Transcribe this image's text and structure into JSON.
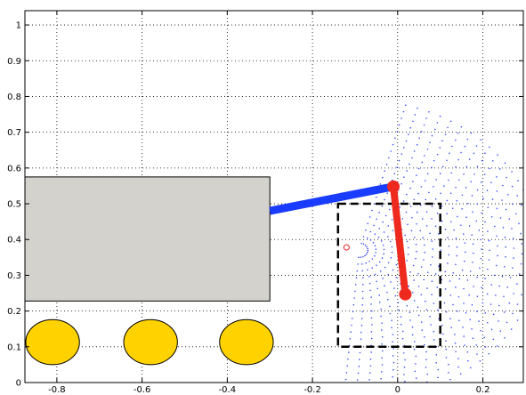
{
  "chart_data": {
    "type": "scatter",
    "title": "",
    "xlabel": "",
    "ylabel": "",
    "xlim": [
      -0.875,
      0.295
    ],
    "ylim": [
      0,
      1.04
    ],
    "grid": true,
    "x_ticks": [
      -0.8,
      -0.6,
      -0.4,
      -0.2,
      0,
      0.2
    ],
    "x_tick_labels": [
      "-0.8",
      "-0.6",
      "-0.4",
      "-0.2",
      "0",
      "0.2"
    ],
    "y_ticks": [
      0,
      0.1,
      0.2,
      0.3,
      0.4,
      0.5,
      0.6,
      0.7,
      0.8,
      0.9,
      1
    ],
    "y_tick_labels": [
      "0",
      "0.1",
      "0.2",
      "0.3",
      "0.4",
      "0.5",
      "0.6",
      "0.7",
      "0.8",
      "0.9",
      "1"
    ],
    "colors": {
      "body": "#d3d2cc",
      "wheel": "#ffd200",
      "upper_arm": "#1a3cff",
      "forearm": "#ee2a1e",
      "workspace_dots": "#3a4cff",
      "target": "#e02020",
      "box": "#000000"
    },
    "vehicle_body": {
      "x": [
        -0.875,
        -0.3
      ],
      "y": [
        0.228,
        0.575
      ]
    },
    "wheels": [
      {
        "cx": -0.81,
        "cy": 0.113,
        "r": 0.063
      },
      {
        "cx": -0.58,
        "cy": 0.113,
        "r": 0.063
      },
      {
        "cx": -0.355,
        "cy": 0.113,
        "r": 0.063
      }
    ],
    "upper_arm": {
      "from": [
        -0.3,
        0.48
      ],
      "to": [
        -0.01,
        0.548
      ]
    },
    "forearm": {
      "from": [
        -0.01,
        0.548
      ],
      "to": [
        0.018,
        0.247
      ]
    },
    "target_point": {
      "x": -0.12,
      "y": 0.378
    },
    "workspace_box": {
      "x": [
        -0.14,
        0.1
      ],
      "y": [
        0.1,
        0.5
      ]
    },
    "workspace": {
      "center": [
        -0.09,
        0.37
      ],
      "radius_range": [
        0.02,
        0.42
      ],
      "radial_steps": 22,
      "angle_range_deg": [
        -95,
        75
      ],
      "angular_steps": 34
    }
  }
}
